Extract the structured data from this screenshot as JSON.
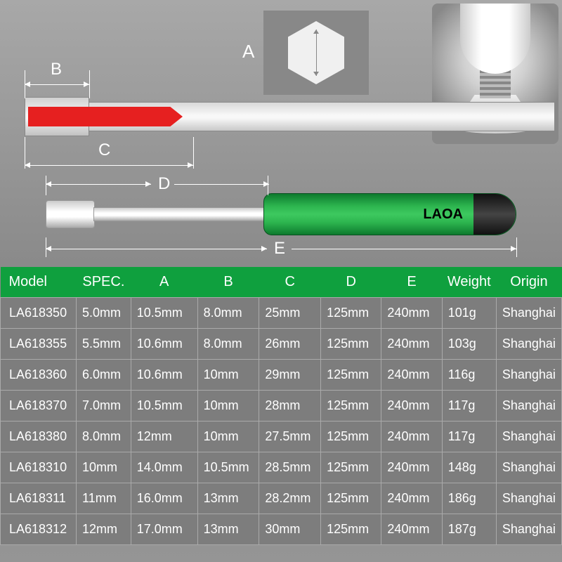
{
  "diagram": {
    "labels": {
      "A": "A",
      "B": "B",
      "C": "C",
      "D": "D",
      "E": "E"
    },
    "brand": "LAOA",
    "colors": {
      "red_insert": "#e62020",
      "handle_green": "#2db54f",
      "header_green": "#0fa03e",
      "row_bg": "#7d7d7d",
      "border": "#aaaaaa",
      "text": "#ffffff"
    }
  },
  "table": {
    "columns": [
      "Model",
      "SPEC.",
      "A",
      "B",
      "C",
      "D",
      "E",
      "Weight",
      "Origin"
    ],
    "rows": [
      [
        "LA618350",
        "5.0mm",
        "10.5mm",
        "8.0mm",
        "25mm",
        "125mm",
        "240mm",
        "101g",
        "Shanghai"
      ],
      [
        "LA618355",
        "5.5mm",
        "10.6mm",
        "8.0mm",
        "26mm",
        "125mm",
        "240mm",
        "103g",
        "Shanghai"
      ],
      [
        "LA618360",
        "6.0mm",
        "10.6mm",
        "10mm",
        "29mm",
        "125mm",
        "240mm",
        "116g",
        "Shanghai"
      ],
      [
        "LA618370",
        "7.0mm",
        "10.5mm",
        "10mm",
        "28mm",
        "125mm",
        "240mm",
        "117g",
        "Shanghai"
      ],
      [
        "LA618380",
        "8.0mm",
        "12mm",
        "10mm",
        "27.5mm",
        "125mm",
        "240mm",
        "117g",
        "Shanghai"
      ],
      [
        "LA618310",
        "10mm",
        "14.0mm",
        "10.5mm",
        "28.5mm",
        "125mm",
        "240mm",
        "148g",
        "Shanghai"
      ],
      [
        "LA618311",
        "11mm",
        "16.0mm",
        "13mm",
        "28.2mm",
        "125mm",
        "240mm",
        "186g",
        "Shanghai"
      ],
      [
        "LA618312",
        "12mm",
        "17.0mm",
        "13mm",
        "30mm",
        "125mm",
        "240mm",
        "187g",
        "Shanghai"
      ]
    ],
    "col_widths": [
      "110px",
      "80px",
      "100px",
      "90px",
      "90px",
      "90px",
      "90px",
      "80px",
      "90px"
    ]
  }
}
